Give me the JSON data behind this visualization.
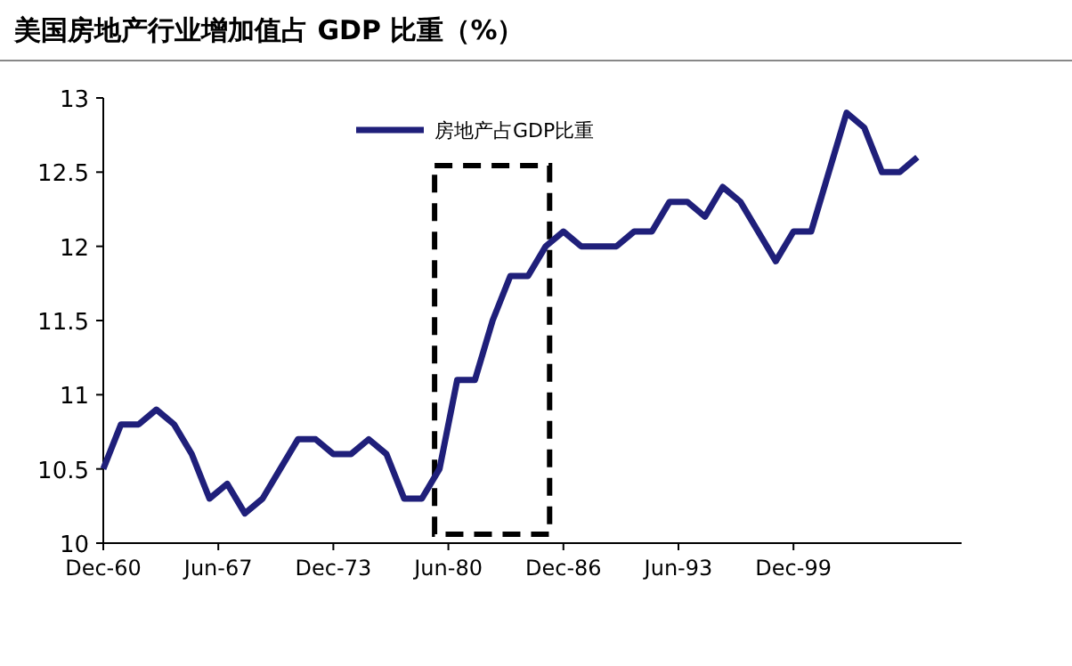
{
  "chart_data": {
    "type": "line",
    "title": "美国房地产行业增加值占 GDP 比重（%）",
    "x": [
      "1960-12",
      "1961-12",
      "1962-12",
      "1963-12",
      "1964-12",
      "1965-12",
      "1966-12",
      "1967-12",
      "1968-12",
      "1969-12",
      "1970-12",
      "1971-12",
      "1972-12",
      "1973-12",
      "1974-12",
      "1975-12",
      "1976-12",
      "1977-12",
      "1978-12",
      "1979-12",
      "1980-12",
      "1981-12",
      "1982-12",
      "1983-12",
      "1984-12",
      "1985-12",
      "1986-12",
      "1987-12",
      "1988-12",
      "1989-12",
      "1990-12",
      "1991-12",
      "1992-12",
      "1993-12",
      "1994-12",
      "1995-12",
      "1996-12",
      "1997-12",
      "1998-12",
      "1999-12",
      "2000-12",
      "2001-12",
      "2002-12",
      "2003-12",
      "2004-12",
      "2005-12",
      "2006-12"
    ],
    "series": [
      {
        "name": "房地产占GDP比重",
        "color": "#1f1f7a",
        "values": [
          10.5,
          10.8,
          10.8,
          10.9,
          10.8,
          10.6,
          10.3,
          10.4,
          10.2,
          10.3,
          10.5,
          10.7,
          10.7,
          10.6,
          10.6,
          10.7,
          10.6,
          10.3,
          10.3,
          10.5,
          11.1,
          11.1,
          11.5,
          11.8,
          11.8,
          12.0,
          12.1,
          12.0,
          12.0,
          12.0,
          12.1,
          12.1,
          12.3,
          12.3,
          12.2,
          12.4,
          12.3,
          12.1,
          11.9,
          12.1,
          12.1,
          12.5,
          12.9,
          12.8,
          12.5,
          12.5,
          12.6
        ]
      }
    ],
    "xlim": [
      "1960-12",
      "2009-06"
    ],
    "xticks": [
      {
        "value": "1960-12",
        "label": "Dec-60"
      },
      {
        "value": "1967-06",
        "label": "Jun-67"
      },
      {
        "value": "1973-12",
        "label": "Dec-73"
      },
      {
        "value": "1980-06",
        "label": "Jun-80"
      },
      {
        "value": "1986-12",
        "label": "Dec-86"
      },
      {
        "value": "1993-06",
        "label": "Jun-93"
      },
      {
        "value": "1999-12",
        "label": "Dec-99"
      }
    ],
    "ylim": [
      10,
      13
    ],
    "yticks": [
      10,
      10.5,
      11,
      11.5,
      12,
      12.5,
      13
    ],
    "legend": "top",
    "grid": false,
    "marker": "none",
    "line_style": "solid"
  }
}
